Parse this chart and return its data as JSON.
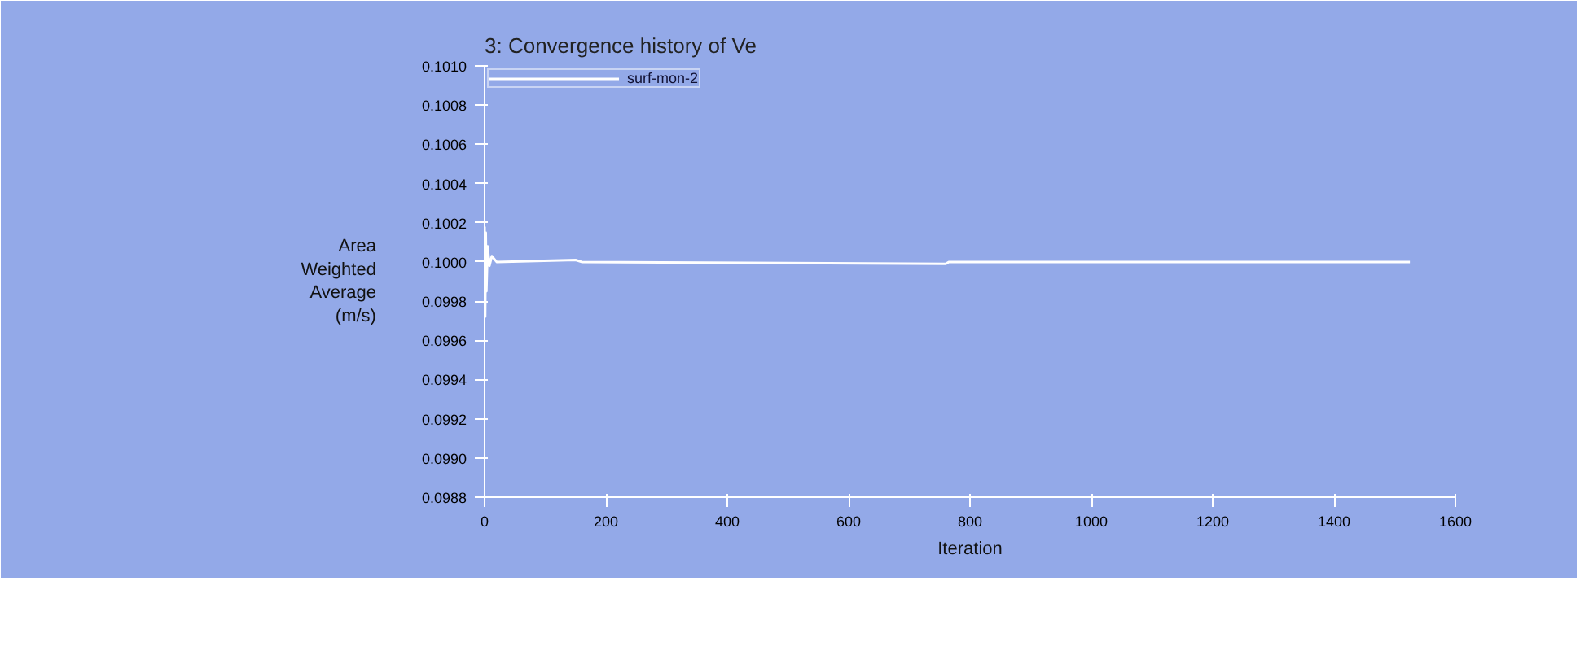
{
  "chart_data": {
    "type": "line",
    "title": "3: Convergence history of Ve",
    "xlabel": "Iteration",
    "ylabel": "Area Weighted Average (m/s)",
    "x": [
      0,
      1,
      2,
      3,
      5,
      8,
      12,
      20,
      150,
      160,
      760,
      765,
      1525
    ],
    "series": [
      {
        "name": "surf-mon-2",
        "color": "#ffffff",
        "values": [
          0.10018,
          0.09972,
          0.10015,
          0.09985,
          0.10008,
          0.09998,
          0.10003,
          0.1,
          0.10001,
          0.1,
          0.09999,
          0.1,
          0.1
        ]
      }
    ],
    "xlim": [
      0,
      1600
    ],
    "xticks": [
      0,
      200,
      400,
      600,
      800,
      1000,
      1200,
      1400,
      1600
    ],
    "ylim": [
      0.0988,
      0.101
    ],
    "yticks": [
      0.0988,
      {
        "value": 0.099,
        "label": "0.0990"
      },
      0.0992,
      0.0994,
      0.0996,
      0.0998,
      {
        "value": 0.1,
        "label": "0.1000"
      },
      0.1002,
      0.1004,
      0.1006,
      0.1008,
      {
        "value": 0.101,
        "label": "0.1010"
      }
    ],
    "grid": false,
    "legend": "top left",
    "line_style": "solid"
  }
}
